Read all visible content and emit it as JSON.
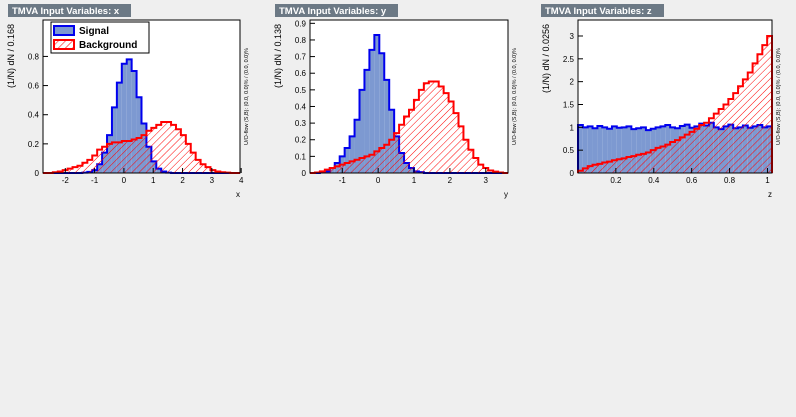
{
  "chart_data": [
    {
      "type": "histogram",
      "title": "TMVA Input Variables: x",
      "xlabel": "x",
      "ylabel": "(1/N) dN / 0.168",
      "overflow_note": "U/O-flow (S,B): (0.0, 0.0)% / (0.0, 0.0)%",
      "legend": "top-left",
      "bins": [
        -2.76,
        -2.592,
        -2.424,
        -2.256,
        -2.088,
        -1.92,
        -1.752,
        -1.584,
        -1.416,
        -1.248,
        -1.08,
        -0.912,
        -0.744,
        -0.576,
        -0.408,
        -0.24,
        -0.072,
        0.096,
        0.264,
        0.432,
        0.6,
        0.768,
        0.936,
        1.104,
        1.272,
        1.44,
        1.608,
        1.776,
        1.944,
        2.112,
        2.28,
        2.448,
        2.616,
        2.784,
        2.952,
        3.12,
        3.288,
        3.456,
        3.624,
        3.792,
        3.96
      ],
      "xlim": [
        -2.76,
        3.96
      ],
      "xticks": [
        -2,
        -1,
        0,
        1,
        2,
        3,
        4
      ],
      "ylim": [
        0,
        1.05
      ],
      "yticks": [
        0,
        0.2,
        0.4,
        0.6,
        0.8
      ],
      "series": [
        {
          "name": "Signal",
          "color": "#0000ee",
          "fill": "#7d99d1",
          "values": [
            0,
            0,
            0,
            0,
            0,
            0,
            0,
            0,
            0.003,
            0.008,
            0.02,
            0.06,
            0.14,
            0.26,
            0.45,
            0.62,
            0.75,
            0.78,
            0.7,
            0.52,
            0.34,
            0.18,
            0.08,
            0.03,
            0.01,
            0.003,
            0,
            0,
            0,
            0,
            0,
            0,
            0,
            0,
            0,
            0,
            0,
            0,
            0,
            0
          ]
        },
        {
          "name": "Background",
          "color": "#ff0000",
          "hatch": true,
          "values": [
            0,
            0,
            0.005,
            0.01,
            0.02,
            0.03,
            0.04,
            0.05,
            0.07,
            0.09,
            0.12,
            0.16,
            0.18,
            0.2,
            0.21,
            0.21,
            0.22,
            0.22,
            0.23,
            0.24,
            0.26,
            0.29,
            0.31,
            0.33,
            0.35,
            0.35,
            0.33,
            0.3,
            0.26,
            0.2,
            0.14,
            0.09,
            0.06,
            0.04,
            0.02,
            0.01,
            0.005,
            0.003,
            0,
            0
          ]
        }
      ]
    },
    {
      "type": "histogram",
      "title": "TMVA Input Variables: y",
      "xlabel": "y",
      "ylabel": "(1/N) dN / 0.138",
      "overflow_note": "U/O-flow (S,B): (0.0, 0.0)% / (0.0, 0.0)%",
      "bins": [
        -1.9,
        -1.762,
        -1.624,
        -1.486,
        -1.348,
        -1.21,
        -1.072,
        -0.934,
        -0.796,
        -0.658,
        -0.52,
        -0.382,
        -0.244,
        -0.106,
        0.032,
        0.17,
        0.308,
        0.446,
        0.584,
        0.722,
        0.86,
        0.998,
        1.136,
        1.274,
        1.412,
        1.55,
        1.688,
        1.826,
        1.964,
        2.102,
        2.24,
        2.378,
        2.516,
        2.654,
        2.792,
        2.93,
        3.068,
        3.206,
        3.344,
        3.482,
        3.62
      ],
      "xlim": [
        -1.9,
        3.62
      ],
      "xticks": [
        -1,
        0,
        1,
        2,
        3
      ],
      "ylim": [
        0,
        0.92
      ],
      "yticks": [
        0,
        0.1,
        0.2,
        0.3,
        0.4,
        0.5,
        0.6,
        0.7,
        0.8,
        0.9
      ],
      "series": [
        {
          "color": "#0000ee",
          "fill": "#7d99d1",
          "values": [
            0,
            0,
            0.005,
            0.01,
            0.03,
            0.06,
            0.1,
            0.15,
            0.22,
            0.32,
            0.5,
            0.62,
            0.74,
            0.83,
            0.72,
            0.56,
            0.38,
            0.22,
            0.12,
            0.06,
            0.03,
            0.01,
            0.005,
            0,
            0,
            0,
            0,
            0,
            0,
            0,
            0,
            0,
            0,
            0,
            0,
            0,
            0,
            0,
            0,
            0
          ]
        },
        {
          "color": "#ff0000",
          "hatch": true,
          "values": [
            0,
            0.003,
            0.01,
            0.02,
            0.03,
            0.04,
            0.05,
            0.06,
            0.07,
            0.08,
            0.09,
            0.1,
            0.11,
            0.13,
            0.15,
            0.17,
            0.2,
            0.24,
            0.29,
            0.34,
            0.38,
            0.44,
            0.5,
            0.54,
            0.55,
            0.55,
            0.52,
            0.48,
            0.43,
            0.36,
            0.28,
            0.2,
            0.14,
            0.09,
            0.05,
            0.03,
            0.015,
            0.008,
            0.003,
            0
          ]
        }
      ]
    },
    {
      "type": "histogram",
      "title": "TMVA Input Variables: z",
      "xlabel": "z",
      "ylabel": "(1/N) dN / 0.0256",
      "overflow_note": "U/O-flow (S,B): (0.0, 0.0)% / (0.0, 0.0)%",
      "bins": [
        0,
        0.0256,
        0.0512,
        0.0768,
        0.1024,
        0.128,
        0.1536,
        0.1792,
        0.2048,
        0.2304,
        0.256,
        0.2816,
        0.3072,
        0.3328,
        0.3584,
        0.384,
        0.4096,
        0.4352,
        0.4608,
        0.4864,
        0.512,
        0.5376,
        0.5632,
        0.5888,
        0.6144,
        0.64,
        0.6656,
        0.6912,
        0.7168,
        0.7424,
        0.768,
        0.7936,
        0.8192,
        0.8448,
        0.8704,
        0.896,
        0.9216,
        0.9472,
        0.9728,
        0.9984,
        1.024
      ],
      "xlim": [
        0,
        1.024
      ],
      "xticks": [
        0.2,
        0.4,
        0.6,
        0.8,
        1
      ],
      "ylim": [
        0,
        3.35
      ],
      "yticks": [
        0,
        0.5,
        1,
        1.5,
        2,
        2.5,
        3
      ],
      "series": [
        {
          "color": "#0000ee",
          "fill": "#7d99d1",
          "values": [
            1.05,
            1.0,
            1.02,
            0.98,
            1.03,
            1.0,
            0.97,
            1.02,
            0.99,
            1.0,
            1.02,
            0.96,
            0.98,
            1.0,
            0.94,
            0.97,
            1.0,
            1.02,
            1.05,
            1.0,
            0.98,
            1.03,
            1.06,
            0.99,
            1.02,
            1.08,
            1.04,
            1.1,
            1.0,
            0.96,
            1.02,
            1.06,
            0.98,
            1.0,
            1.04,
            0.99,
            1.02,
            1.05,
            1.0,
            1.02
          ]
        },
        {
          "color": "#ff0000",
          "hatch": true,
          "values": [
            0.05,
            0.1,
            0.15,
            0.18,
            0.2,
            0.23,
            0.25,
            0.28,
            0.3,
            0.32,
            0.35,
            0.37,
            0.4,
            0.42,
            0.45,
            0.5,
            0.55,
            0.58,
            0.62,
            0.68,
            0.72,
            0.78,
            0.84,
            0.9,
            0.97,
            1.05,
            1.1,
            1.2,
            1.3,
            1.4,
            1.5,
            1.62,
            1.75,
            1.9,
            2.05,
            2.2,
            2.4,
            2.6,
            2.8,
            3.0
          ]
        }
      ]
    }
  ]
}
